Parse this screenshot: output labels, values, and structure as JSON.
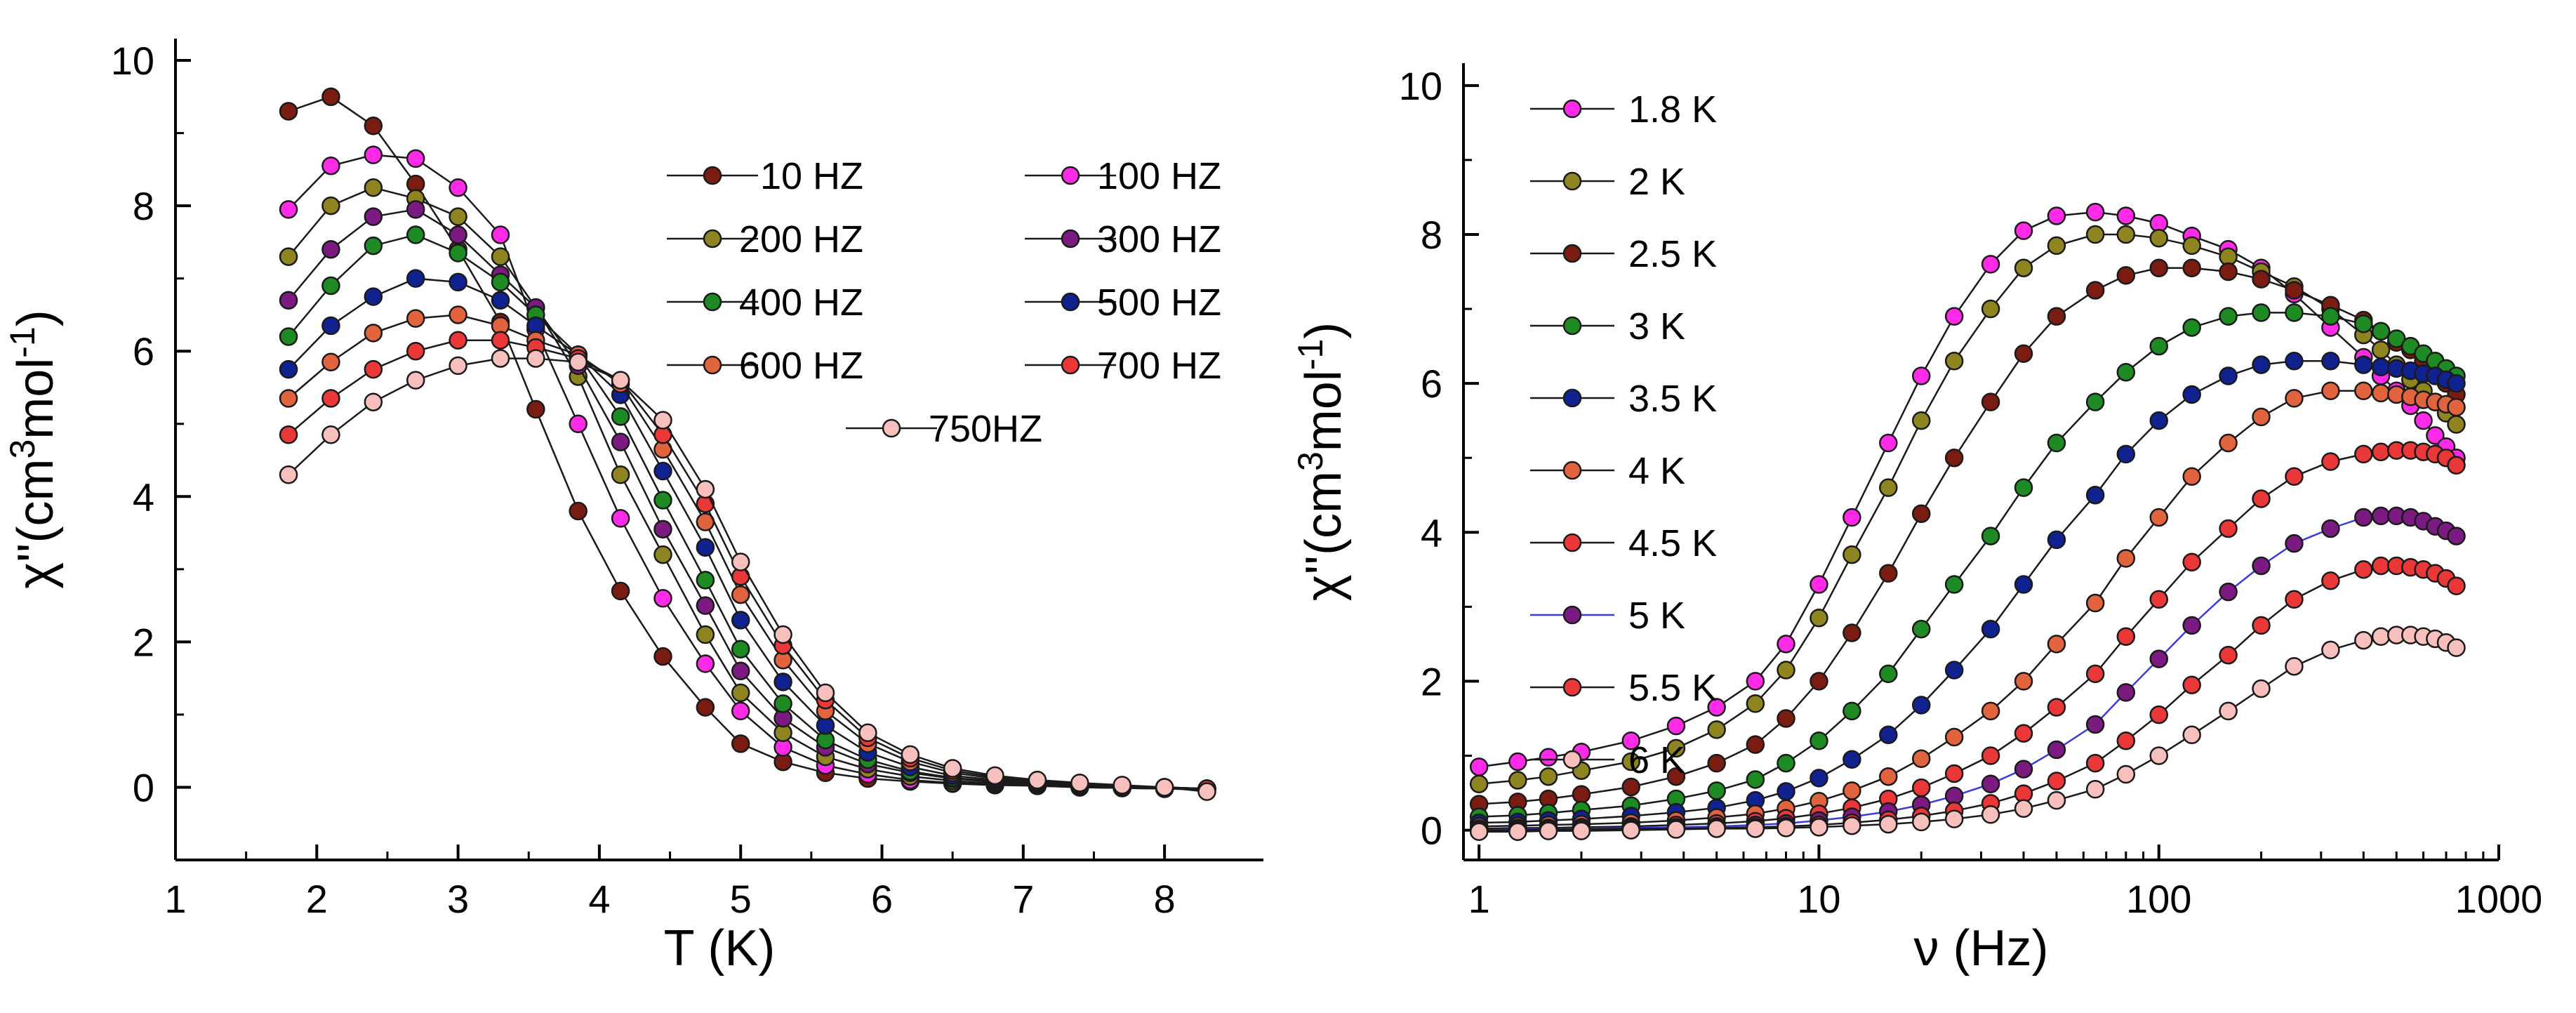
{
  "chart_data": [
    {
      "type": "line",
      "panel": "left",
      "xlabel": "T (K)",
      "ylabel": "χ''(cm3mol-1)",
      "ylabel_parts": {
        "prefix": "χ''(cm",
        "sup1": "3",
        "mid": "mol",
        "sup2": "-1",
        "suffix": ")"
      },
      "xlim": [
        1,
        8.7
      ],
      "ylim": [
        -1,
        10.3
      ],
      "xticks": [
        1,
        2,
        3,
        4,
        5,
        6,
        7,
        8
      ],
      "yticks": [
        0,
        2,
        4,
        6,
        8,
        10
      ],
      "legend_position": "top-right",
      "legend_columns": 2,
      "x": [
        1.8,
        2.1,
        2.4,
        2.7,
        3.0,
        3.3,
        3.55,
        3.85,
        4.15,
        4.45,
        4.75,
        5.0,
        5.3,
        5.6,
        5.9,
        6.2,
        6.5,
        6.8,
        7.1,
        7.4,
        7.7,
        8.0,
        8.3
      ],
      "series": [
        {
          "name": "10 HZ",
          "color": "#7a1c12",
          "values": [
            9.3,
            9.5,
            9.1,
            8.3,
            7.4,
            6.4,
            5.2,
            3.8,
            2.7,
            1.8,
            1.1,
            0.6,
            0.35,
            0.2,
            0.12,
            0.08,
            0.05,
            0.03,
            0.02,
            0.0,
            -0.01,
            -0.02,
            -0.03
          ]
        },
        {
          "name": "100 HZ",
          "color": "#ff2ae8",
          "values": [
            7.95,
            8.55,
            8.7,
            8.65,
            8.25,
            7.6,
            6.3,
            5.0,
            3.7,
            2.6,
            1.7,
            1.05,
            0.55,
            0.3,
            0.18,
            0.1,
            0.06,
            0.04,
            0.02,
            0.0,
            -0.01,
            -0.02,
            -0.03
          ]
        },
        {
          "name": "200 HZ",
          "color": "#8f8520",
          "values": [
            7.3,
            8.0,
            8.25,
            8.1,
            7.85,
            7.3,
            6.6,
            5.65,
            4.3,
            3.2,
            2.1,
            1.3,
            0.75,
            0.42,
            0.25,
            0.15,
            0.09,
            0.05,
            0.03,
            0.01,
            0.0,
            -0.01,
            -0.02
          ]
        },
        {
          "name": "300 HZ",
          "color": "#7b1a80",
          "values": [
            6.7,
            7.4,
            7.85,
            7.95,
            7.6,
            7.05,
            6.6,
            5.8,
            4.75,
            3.55,
            2.5,
            1.6,
            0.95,
            0.55,
            0.32,
            0.2,
            0.12,
            0.07,
            0.04,
            0.02,
            0.0,
            -0.01,
            -0.02
          ]
        },
        {
          "name": "400 HZ",
          "color": "#1e8a24",
          "values": [
            6.2,
            6.9,
            7.45,
            7.6,
            7.35,
            6.95,
            6.5,
            5.95,
            5.1,
            3.95,
            2.85,
            1.9,
            1.15,
            0.65,
            0.38,
            0.22,
            0.13,
            0.08,
            0.05,
            0.02,
            0.01,
            -0.01,
            -0.02
          ]
        },
        {
          "name": "500 HZ",
          "color": "#10228f",
          "values": [
            5.75,
            6.35,
            6.75,
            7.0,
            6.95,
            6.7,
            6.35,
            5.95,
            5.4,
            4.35,
            3.3,
            2.3,
            1.45,
            0.85,
            0.48,
            0.28,
            0.16,
            0.1,
            0.06,
            0.03,
            0.01,
            0.0,
            -0.02
          ]
        },
        {
          "name": "600 HZ",
          "color": "#e2643e",
          "values": [
            5.35,
            5.85,
            6.25,
            6.45,
            6.5,
            6.35,
            6.15,
            5.95,
            5.55,
            4.65,
            3.65,
            2.65,
            1.75,
            1.05,
            0.6,
            0.35,
            0.2,
            0.12,
            0.07,
            0.04,
            0.02,
            0.0,
            -0.02
          ]
        },
        {
          "name": "700 HZ",
          "color": "#ea3838",
          "values": [
            4.85,
            5.35,
            5.75,
            6.0,
            6.15,
            6.15,
            6.05,
            5.9,
            5.6,
            4.85,
            3.9,
            2.9,
            1.95,
            1.2,
            0.68,
            0.4,
            0.23,
            0.14,
            0.08,
            0.05,
            0.02,
            0.0,
            -0.02
          ]
        },
        {
          "name": "750HZ",
          "color": "#f7c0bc",
          "values": [
            4.3,
            4.85,
            5.3,
            5.6,
            5.8,
            5.9,
            5.9,
            5.85,
            5.6,
            5.05,
            4.1,
            3.1,
            2.1,
            1.3,
            0.75,
            0.45,
            0.26,
            0.16,
            0.1,
            0.06,
            0.03,
            0.0,
            -0.06
          ]
        }
      ]
    },
    {
      "type": "line",
      "panel": "right",
      "xscale": "log",
      "xlabel": "ν (Hz)",
      "ylabel": "χ''(cm3mol-1)",
      "ylabel_parts": {
        "prefix": "χ''(cm",
        "sup1": "3",
        "mid": "mol",
        "sup2": "-1",
        "suffix": ")"
      },
      "xlim": [
        0.9,
        1000
      ],
      "ylim": [
        -0.4,
        10.3
      ],
      "xticks": [
        1,
        10,
        100,
        1000
      ],
      "xticklabels": [
        "1",
        "10",
        "100",
        "1000"
      ],
      "yticks": [
        0,
        2,
        4,
        6,
        8,
        10
      ],
      "legend_position": "top-left",
      "legend_columns": 1,
      "x": [
        1,
        1.3,
        1.6,
        2,
        2.8,
        3.8,
        5,
        6.5,
        8,
        10,
        12.5,
        16,
        20,
        25,
        32,
        40,
        50,
        65,
        80,
        100,
        125,
        160,
        200,
        250,
        320,
        400,
        450,
        500,
        550,
        600,
        650,
        700,
        750
      ],
      "series": [
        {
          "name": "1.8 K",
          "color": "#ff2ae8",
          "values": [
            0.85,
            0.92,
            0.98,
            1.05,
            1.2,
            1.4,
            1.65,
            2.0,
            2.5,
            3.3,
            4.2,
            5.2,
            6.1,
            6.9,
            7.6,
            8.05,
            8.25,
            8.3,
            8.25,
            8.15,
            7.98,
            7.8,
            7.55,
            7.2,
            6.75,
            6.35,
            6.1,
            5.9,
            5.7,
            5.5,
            5.3,
            5.15,
            5.0
          ]
        },
        {
          "name": "2 K",
          "color": "#8f8520",
          "values": [
            0.62,
            0.67,
            0.72,
            0.8,
            0.92,
            1.1,
            1.35,
            1.7,
            2.15,
            2.85,
            3.7,
            4.6,
            5.5,
            6.3,
            7.0,
            7.55,
            7.85,
            8.0,
            8.0,
            7.95,
            7.85,
            7.7,
            7.5,
            7.3,
            7.0,
            6.65,
            6.45,
            6.25,
            6.05,
            5.9,
            5.75,
            5.6,
            5.45
          ]
        },
        {
          "name": "2.5 K",
          "color": "#7a1c12",
          "values": [
            0.35,
            0.38,
            0.42,
            0.48,
            0.58,
            0.72,
            0.9,
            1.15,
            1.5,
            2.0,
            2.65,
            3.45,
            4.25,
            5.0,
            5.75,
            6.4,
            6.9,
            7.25,
            7.45,
            7.55,
            7.55,
            7.5,
            7.4,
            7.25,
            7.05,
            6.85,
            6.7,
            6.55,
            6.45,
            6.3,
            6.15,
            6.0,
            5.85
          ]
        },
        {
          "name": "3 K",
          "color": "#1e8a24",
          "values": [
            0.18,
            0.2,
            0.23,
            0.27,
            0.33,
            0.42,
            0.53,
            0.68,
            0.9,
            1.2,
            1.6,
            2.1,
            2.7,
            3.3,
            3.95,
            4.6,
            5.2,
            5.75,
            6.15,
            6.5,
            6.75,
            6.9,
            6.95,
            6.95,
            6.9,
            6.8,
            6.7,
            6.6,
            6.5,
            6.4,
            6.3,
            6.2,
            6.1
          ]
        },
        {
          "name": "3.5 K",
          "color": "#10228f",
          "values": [
            0.1,
            0.11,
            0.13,
            0.15,
            0.19,
            0.24,
            0.3,
            0.4,
            0.52,
            0.7,
            0.95,
            1.28,
            1.68,
            2.15,
            2.7,
            3.3,
            3.9,
            4.5,
            5.05,
            5.5,
            5.85,
            6.1,
            6.25,
            6.3,
            6.3,
            6.25,
            6.22,
            6.2,
            6.17,
            6.13,
            6.1,
            6.05,
            6.0
          ]
        },
        {
          "name": "4 K",
          "color": "#e2643e",
          "values": [
            0.05,
            0.06,
            0.07,
            0.08,
            0.1,
            0.13,
            0.17,
            0.22,
            0.29,
            0.39,
            0.53,
            0.72,
            0.96,
            1.25,
            1.6,
            2.0,
            2.5,
            3.05,
            3.65,
            4.2,
            4.75,
            5.2,
            5.55,
            5.8,
            5.9,
            5.9,
            5.87,
            5.85,
            5.82,
            5.78,
            5.75,
            5.72,
            5.68
          ]
        },
        {
          "name": "4.5 K",
          "color": "#ea3838",
          "values": [
            0.02,
            0.03,
            0.03,
            0.04,
            0.05,
            0.07,
            0.09,
            0.12,
            0.16,
            0.22,
            0.3,
            0.42,
            0.57,
            0.76,
            1.0,
            1.3,
            1.65,
            2.1,
            2.6,
            3.1,
            3.6,
            4.05,
            4.45,
            4.75,
            4.95,
            5.05,
            5.08,
            5.1,
            5.1,
            5.08,
            5.05,
            5.0,
            4.9
          ]
        },
        {
          "name": "5 K",
          "color": "#7b1a80",
          "line_color": "#3a3ae0",
          "values": [
            0.0,
            0.01,
            0.01,
            0.02,
            0.03,
            0.04,
            0.05,
            0.07,
            0.09,
            0.13,
            0.18,
            0.25,
            0.34,
            0.46,
            0.62,
            0.82,
            1.08,
            1.42,
            1.85,
            2.3,
            2.75,
            3.2,
            3.55,
            3.85,
            4.05,
            4.2,
            4.22,
            4.22,
            4.2,
            4.15,
            4.08,
            4.02,
            3.95
          ]
        },
        {
          "name": "5.5 K",
          "color": "#ea3838",
          "values": [
            0.0,
            0.0,
            0.01,
            0.01,
            0.02,
            0.02,
            0.03,
            0.04,
            0.05,
            0.07,
            0.1,
            0.14,
            0.19,
            0.26,
            0.36,
            0.49,
            0.66,
            0.9,
            1.2,
            1.55,
            1.95,
            2.35,
            2.75,
            3.1,
            3.35,
            3.5,
            3.55,
            3.55,
            3.53,
            3.5,
            3.45,
            3.38,
            3.28
          ]
        },
        {
          "name": "6 K",
          "color": "#f7c0bc",
          "values": [
            -0.02,
            -0.02,
            -0.01,
            -0.01,
            0.0,
            0.01,
            0.02,
            0.02,
            0.03,
            0.04,
            0.06,
            0.08,
            0.11,
            0.15,
            0.21,
            0.29,
            0.4,
            0.55,
            0.75,
            1.0,
            1.28,
            1.6,
            1.9,
            2.2,
            2.42,
            2.55,
            2.6,
            2.62,
            2.62,
            2.6,
            2.57,
            2.52,
            2.45
          ]
        }
      ]
    }
  ]
}
